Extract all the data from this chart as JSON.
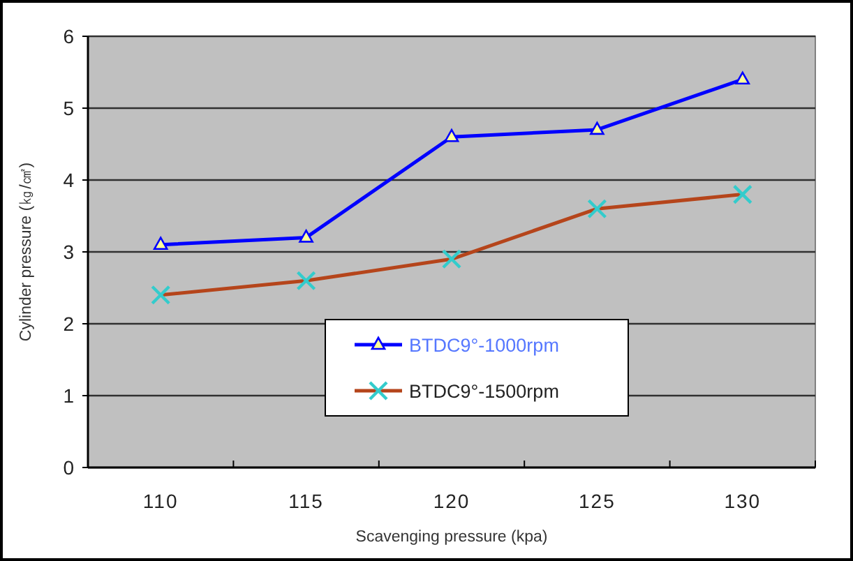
{
  "chart_data": {
    "type": "line",
    "xlabel": "Scavenging pressure (kpa)",
    "ylabel": "Cylinder pressure (㎏/㎠)",
    "categories": [
      "110",
      "115",
      "120",
      "125",
      "130"
    ],
    "series": [
      {
        "name": "BTDC9°-1000rpm",
        "color": "#0000ff",
        "marker": "triangle",
        "values": [
          3.1,
          3.2,
          4.6,
          4.7,
          5.4
        ]
      },
      {
        "name": "BTDC9°-1500rpm",
        "color": "#b5451b",
        "marker": "cross",
        "values": [
          2.4,
          2.6,
          2.9,
          3.6,
          3.8
        ]
      }
    ],
    "ylim": [
      0,
      6
    ],
    "yticks": [
      0,
      1,
      2,
      3,
      4,
      5,
      6
    ],
    "grid": "y",
    "legend": "bottom"
  }
}
